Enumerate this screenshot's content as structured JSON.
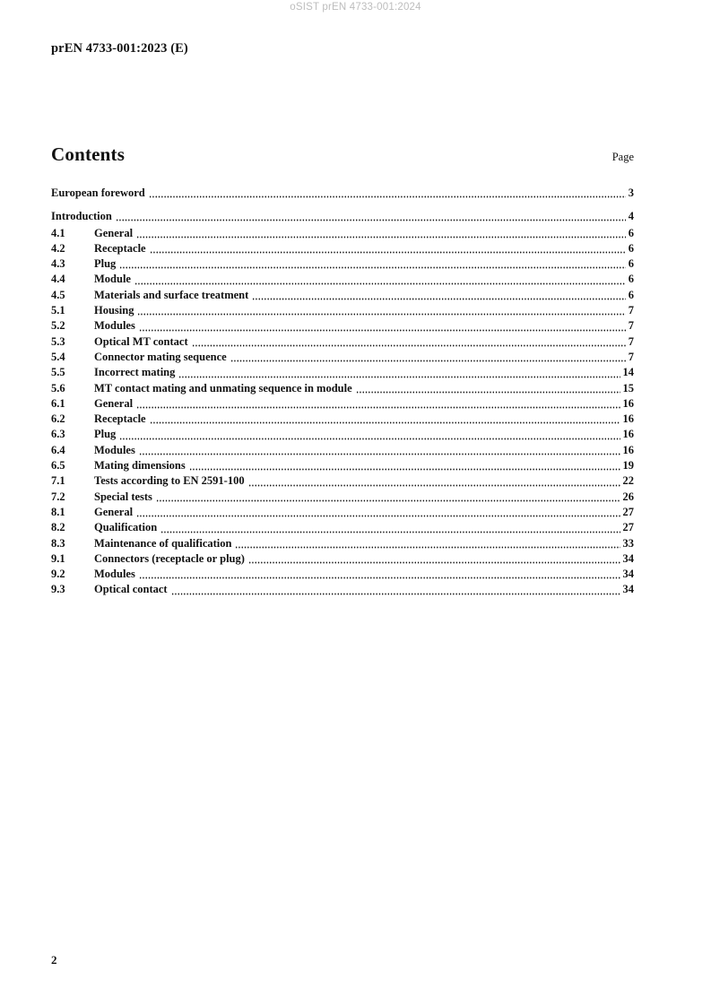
{
  "watermark": "oSIST prEN 4733-001:2024",
  "header": {
    "doc_ref": "prEN 4733-001:2023 (E)"
  },
  "contents": {
    "title": "Contents",
    "page_label": "Page",
    "entries": [
      {
        "num": "",
        "title": "European foreword",
        "page": "3"
      },
      {
        "num": "",
        "title": "Introduction",
        "page": "4"
      },
      {
        "num": "4.1",
        "title": "General",
        "page": "6"
      },
      {
        "num": "4.2",
        "title": "Receptacle",
        "page": "6"
      },
      {
        "num": "4.3",
        "title": "Plug",
        "page": "6"
      },
      {
        "num": "4.4",
        "title": "Module",
        "page": "6"
      },
      {
        "num": "4.5",
        "title": "Materials and surface treatment",
        "page": "6"
      },
      {
        "num": "5.1",
        "title": "Housing",
        "page": "7"
      },
      {
        "num": "5.2",
        "title": "Modules",
        "page": "7"
      },
      {
        "num": "5.3",
        "title": "Optical MT contact",
        "page": "7"
      },
      {
        "num": "5.4",
        "title": "Connector mating sequence",
        "page": "7"
      },
      {
        "num": "5.5",
        "title": "Incorrect mating",
        "page": "14"
      },
      {
        "num": "5.6",
        "title": "MT contact mating and unmating sequence in module",
        "page": "15"
      },
      {
        "num": "6.1",
        "title": "General",
        "page": "16"
      },
      {
        "num": "6.2",
        "title": "Receptacle",
        "page": "16"
      },
      {
        "num": "6.3",
        "title": "Plug",
        "page": "16"
      },
      {
        "num": "6.4",
        "title": "Modules",
        "page": "16"
      },
      {
        "num": "6.5",
        "title": "Mating dimensions",
        "page": "19"
      },
      {
        "num": "7.1",
        "title": "Tests according to EN 2591-100",
        "page": "22"
      },
      {
        "num": "7.2",
        "title": "Special tests",
        "page": "26"
      },
      {
        "num": "8.1",
        "title": "General",
        "page": "27"
      },
      {
        "num": "8.2",
        "title": "Qualification",
        "page": "27"
      },
      {
        "num": "8.3",
        "title": "Maintenance of qualification",
        "page": "33"
      },
      {
        "num": "9.1",
        "title": "Connectors (receptacle or plug)",
        "page": "34"
      },
      {
        "num": "9.2",
        "title": "Modules",
        "page": "34"
      },
      {
        "num": "9.3",
        "title": "Optical contact",
        "page": "34"
      }
    ]
  },
  "footer": {
    "page_number": "2"
  }
}
